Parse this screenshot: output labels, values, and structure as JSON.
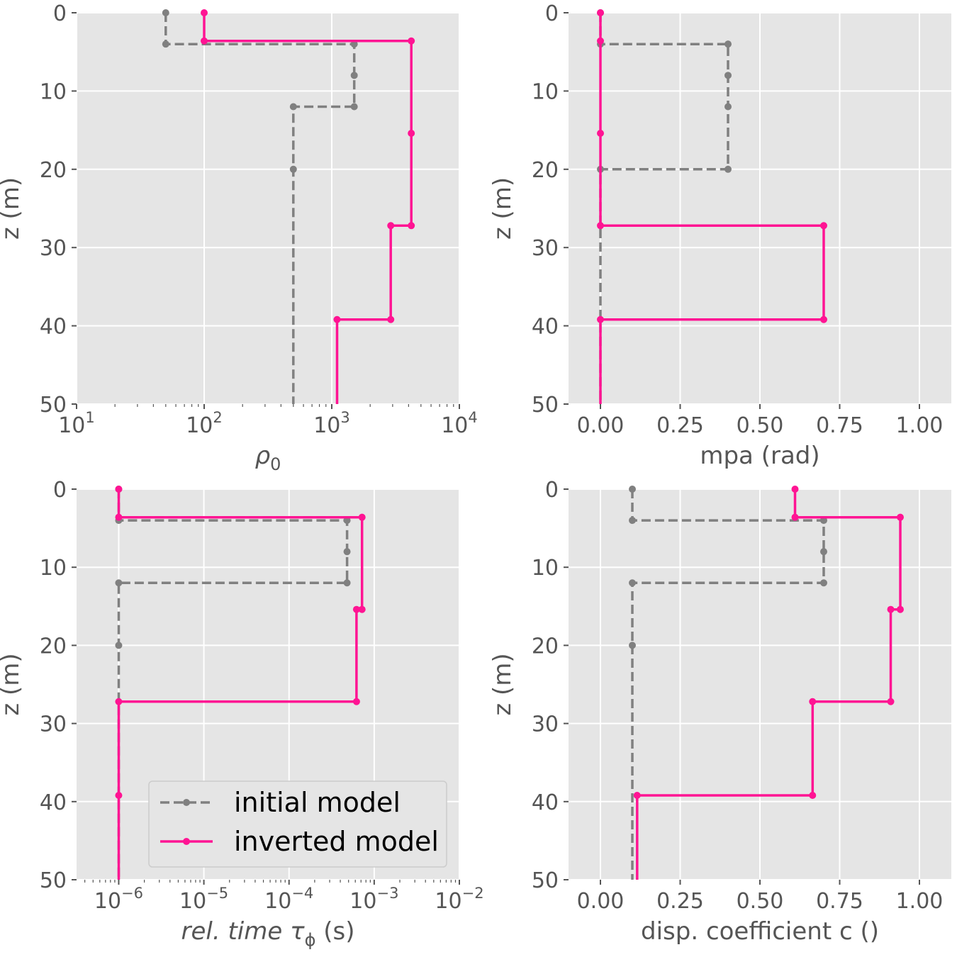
{
  "colors": {
    "initial": "#808080",
    "inverted": "#ff1493"
  },
  "chart_data": [
    {
      "type": "line",
      "xscale": "log",
      "xlabel": "ρ",
      "xlabel_sub": "0",
      "ylabel": "z (m)",
      "xlim": [
        10,
        10000
      ],
      "ylim": [
        50,
        0
      ],
      "grid": true,
      "xticks": [
        {
          "v": 10,
          "e": "1"
        },
        {
          "v": 100,
          "e": "2"
        },
        {
          "v": 1000,
          "e": "3"
        },
        {
          "v": 10000,
          "e": "4"
        }
      ],
      "yticks": [
        {
          "v": 0,
          "l": "0"
        },
        {
          "v": 10,
          "l": "10"
        },
        {
          "v": 20,
          "l": "20"
        },
        {
          "v": 30,
          "l": "30"
        },
        {
          "v": 40,
          "l": "40"
        },
        {
          "v": 50,
          "l": "50"
        }
      ],
      "series": [
        {
          "name": "initial model",
          "style": "dashed",
          "points": [
            [
              50,
              0
            ],
            [
              50,
              4
            ],
            [
              1500,
              4
            ],
            [
              1500,
              8
            ],
            [
              1500,
              12
            ],
            [
              500,
              12
            ],
            [
              500,
              20
            ],
            [
              500,
              50
            ]
          ],
          "markers": [
            [
              50,
              0
            ],
            [
              50,
              4
            ],
            [
              1500,
              4
            ],
            [
              1500,
              8
            ],
            [
              1500,
              12
            ],
            [
              500,
              12
            ],
            [
              500,
              20
            ]
          ]
        },
        {
          "name": "inverted model",
          "style": "solid",
          "points": [
            [
              100,
              0
            ],
            [
              100,
              3.6
            ],
            [
              4200,
              3.6
            ],
            [
              4200,
              15.4
            ],
            [
              4200,
              27.2
            ],
            [
              2900,
              27.2
            ],
            [
              2900,
              39.2
            ],
            [
              1100,
              39.2
            ],
            [
              1100,
              50
            ]
          ],
          "markers": [
            [
              100,
              0
            ],
            [
              100,
              3.6
            ],
            [
              4200,
              3.6
            ],
            [
              4200,
              15.4
            ],
            [
              4200,
              27.2
            ],
            [
              2900,
              27.2
            ],
            [
              2900,
              39.2
            ],
            [
              1100,
              39.2
            ]
          ]
        }
      ]
    },
    {
      "type": "line",
      "xscale": "linear",
      "xlabel": "mpa (rad)",
      "ylabel": "z (m)",
      "xlim": [
        -0.1,
        1.1
      ],
      "ylim": [
        50,
        0
      ],
      "grid": true,
      "xticks": [
        {
          "v": 0,
          "l": "0.00"
        },
        {
          "v": 0.25,
          "l": "0.25"
        },
        {
          "v": 0.5,
          "l": "0.50"
        },
        {
          "v": 0.75,
          "l": "0.75"
        },
        {
          "v": 1.0,
          "l": "1.00"
        }
      ],
      "yticks": [
        {
          "v": 0,
          "l": "0"
        },
        {
          "v": 10,
          "l": "10"
        },
        {
          "v": 20,
          "l": "20"
        },
        {
          "v": 30,
          "l": "30"
        },
        {
          "v": 40,
          "l": "40"
        },
        {
          "v": 50,
          "l": "50"
        }
      ],
      "series": [
        {
          "name": "initial model",
          "style": "dashed",
          "points": [
            [
              0,
              0
            ],
            [
              0,
              4
            ],
            [
              0.4,
              4
            ],
            [
              0.4,
              8
            ],
            [
              0.4,
              12
            ],
            [
              0.4,
              20
            ],
            [
              0,
              20
            ],
            [
              0,
              50
            ]
          ],
          "markers": [
            [
              0,
              0
            ],
            [
              0,
              4
            ],
            [
              0.4,
              4
            ],
            [
              0.4,
              8
            ],
            [
              0.4,
              12
            ],
            [
              0.4,
              20
            ],
            [
              0,
              20
            ]
          ]
        },
        {
          "name": "inverted model",
          "style": "solid",
          "points": [
            [
              0,
              0
            ],
            [
              0,
              3.6
            ],
            [
              0,
              15.4
            ],
            [
              0,
              27.2
            ],
            [
              0.7,
              27.2
            ],
            [
              0.7,
              39.2
            ],
            [
              0,
              39.2
            ],
            [
              0,
              50
            ]
          ],
          "markers": [
            [
              0,
              0
            ],
            [
              0,
              3.6
            ],
            [
              0,
              15.4
            ],
            [
              0,
              27.2
            ],
            [
              0.7,
              27.2
            ],
            [
              0.7,
              39.2
            ],
            [
              0,
              39.2
            ]
          ]
        }
      ]
    },
    {
      "type": "line",
      "xscale": "log",
      "xlabel": "rel. time τ",
      "xlabel_sub": "ϕ",
      "xlabel_after": " (s)",
      "ylabel": "z (m)",
      "xlim": [
        3.2e-07,
        0.01
      ],
      "ylim": [
        50,
        0
      ],
      "grid": true,
      "xticks": [
        {
          "v": 1e-06,
          "e": "−6"
        },
        {
          "v": 1e-05,
          "e": "−5"
        },
        {
          "v": 0.0001,
          "e": "−4"
        },
        {
          "v": 0.001,
          "e": "−3"
        },
        {
          "v": 0.01,
          "e": "−2"
        }
      ],
      "yticks": [
        {
          "v": 0,
          "l": "0"
        },
        {
          "v": 10,
          "l": "10"
        },
        {
          "v": 20,
          "l": "20"
        },
        {
          "v": 30,
          "l": "30"
        },
        {
          "v": 40,
          "l": "40"
        },
        {
          "v": 50,
          "l": "50"
        }
      ],
      "series": [
        {
          "name": "initial model",
          "style": "dashed",
          "points": [
            [
              1e-06,
              0
            ],
            [
              1e-06,
              4
            ],
            [
              0.00048,
              4
            ],
            [
              0.00048,
              8
            ],
            [
              0.00048,
              12
            ],
            [
              1e-06,
              12
            ],
            [
              1e-06,
              20
            ],
            [
              1e-06,
              50
            ]
          ],
          "markers": [
            [
              1e-06,
              0
            ],
            [
              1e-06,
              4
            ],
            [
              0.00048,
              4
            ],
            [
              0.00048,
              8
            ],
            [
              0.00048,
              12
            ],
            [
              1e-06,
              12
            ],
            [
              1e-06,
              20
            ]
          ]
        },
        {
          "name": "inverted model",
          "style": "solid",
          "points": [
            [
              1e-06,
              0
            ],
            [
              1e-06,
              3.6
            ],
            [
              0.00072,
              3.6
            ],
            [
              0.00072,
              15.4
            ],
            [
              0.00062,
              15.4
            ],
            [
              0.00062,
              27.2
            ],
            [
              1e-06,
              27.2
            ],
            [
              1e-06,
              39.2
            ],
            [
              1e-06,
              50
            ]
          ],
          "markers": [
            [
              1e-06,
              0
            ],
            [
              1e-06,
              3.6
            ],
            [
              0.00072,
              3.6
            ],
            [
              0.00072,
              15.4
            ],
            [
              0.00062,
              15.4
            ],
            [
              0.00062,
              27.2
            ],
            [
              1e-06,
              27.2
            ],
            [
              1e-06,
              39.2
            ]
          ]
        }
      ],
      "legend": {
        "placement": "lower-right",
        "entries": [
          "initial model",
          "inverted model"
        ]
      }
    },
    {
      "type": "line",
      "xscale": "linear",
      "xlabel": "disp. coefficient c ()",
      "ylabel": "z (m)",
      "xlim": [
        -0.1,
        1.1
      ],
      "ylim": [
        50,
        0
      ],
      "grid": true,
      "xticks": [
        {
          "v": 0,
          "l": "0.00"
        },
        {
          "v": 0.25,
          "l": "0.25"
        },
        {
          "v": 0.5,
          "l": "0.50"
        },
        {
          "v": 0.75,
          "l": "0.75"
        },
        {
          "v": 1.0,
          "l": "1.00"
        }
      ],
      "yticks": [
        {
          "v": 0,
          "l": "0"
        },
        {
          "v": 10,
          "l": "10"
        },
        {
          "v": 20,
          "l": "20"
        },
        {
          "v": 30,
          "l": "30"
        },
        {
          "v": 40,
          "l": "40"
        },
        {
          "v": 50,
          "l": "50"
        }
      ],
      "series": [
        {
          "name": "initial model",
          "style": "dashed",
          "points": [
            [
              0.1,
              0
            ],
            [
              0.1,
              4
            ],
            [
              0.7,
              4
            ],
            [
              0.7,
              8
            ],
            [
              0.7,
              12
            ],
            [
              0.1,
              12
            ],
            [
              0.1,
              20
            ],
            [
              0.1,
              50
            ]
          ],
          "markers": [
            [
              0.1,
              0
            ],
            [
              0.1,
              4
            ],
            [
              0.7,
              4
            ],
            [
              0.7,
              8
            ],
            [
              0.7,
              12
            ],
            [
              0.1,
              12
            ],
            [
              0.1,
              20
            ]
          ]
        },
        {
          "name": "inverted model",
          "style": "solid",
          "points": [
            [
              0.61,
              0
            ],
            [
              0.61,
              3.6
            ],
            [
              0.94,
              3.6
            ],
            [
              0.94,
              15.4
            ],
            [
              0.91,
              15.4
            ],
            [
              0.91,
              27.2
            ],
            [
              0.665,
              27.2
            ],
            [
              0.665,
              39.2
            ],
            [
              0.115,
              39.2
            ],
            [
              0.115,
              50
            ]
          ],
          "markers": [
            [
              0.61,
              0
            ],
            [
              0.61,
              3.6
            ],
            [
              0.94,
              3.6
            ],
            [
              0.94,
              15.4
            ],
            [
              0.91,
              15.4
            ],
            [
              0.91,
              27.2
            ],
            [
              0.665,
              27.2
            ],
            [
              0.665,
              39.2
            ],
            [
              0.115,
              39.2
            ]
          ]
        }
      ]
    }
  ]
}
